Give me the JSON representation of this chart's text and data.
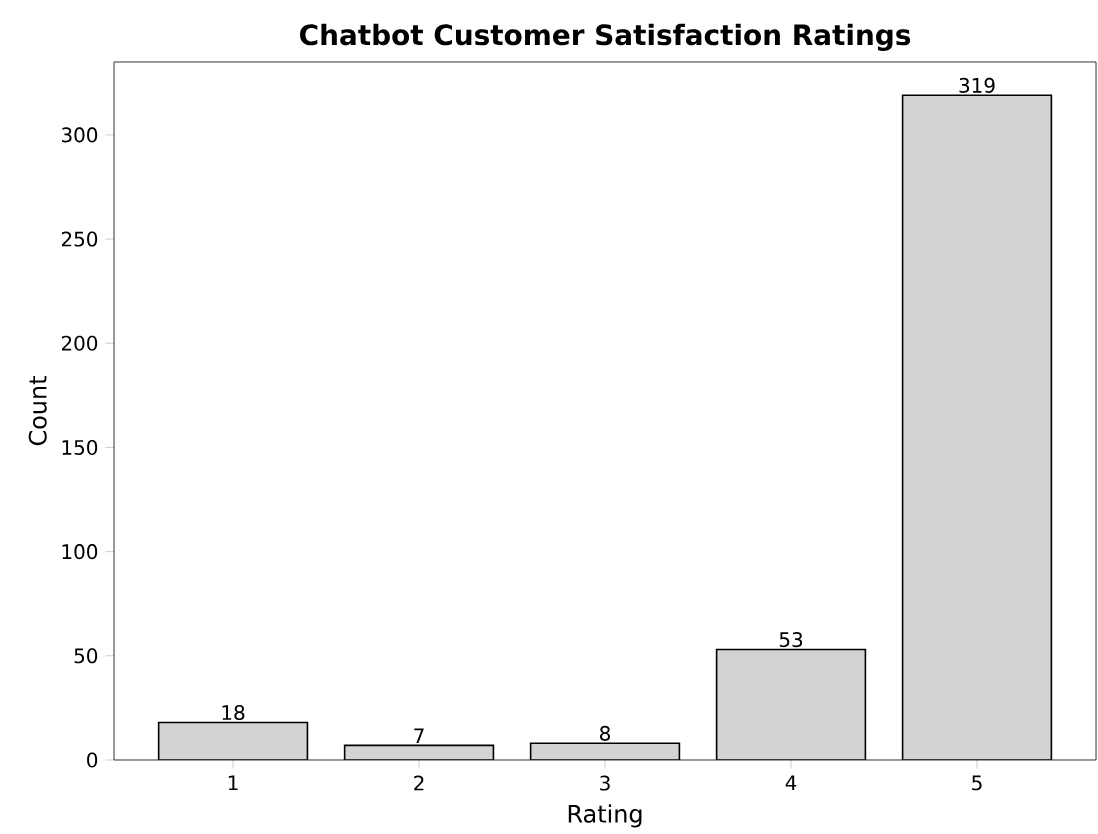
{
  "chart_data": {
    "type": "bar",
    "title": "Chatbot Customer Satisfaction Ratings",
    "xlabel": "Rating",
    "ylabel": "Count",
    "categories": [
      "1",
      "2",
      "3",
      "4",
      "5"
    ],
    "values": [
      18,
      7,
      8,
      53,
      319
    ],
    "color": "#d3d3d3",
    "ylim": [
      0,
      335
    ],
    "yticks": [
      0,
      50,
      100,
      150,
      200,
      250,
      300
    ],
    "data_labels": true
  }
}
